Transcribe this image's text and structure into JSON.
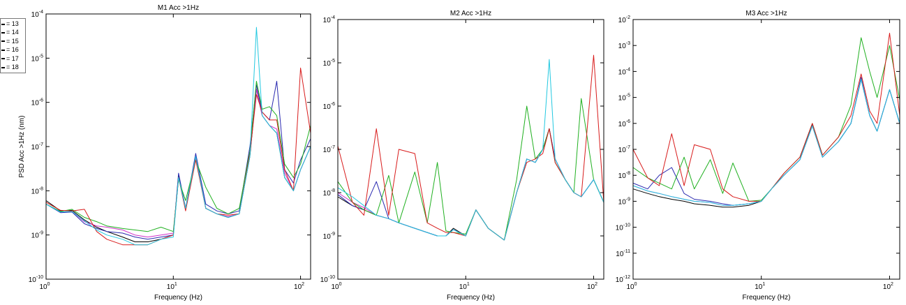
{
  "legend": {
    "entries": [
      "= 13",
      "= 14",
      "= 15",
      "= 16",
      "= 17",
      "= 18"
    ],
    "colors": [
      "#000000",
      "#d81b1b",
      "#20b020",
      "#2a2ab0",
      "#d030c8",
      "#22c8e0"
    ]
  },
  "chart_data": [
    {
      "type": "line",
      "title": "M1 Acc >1Hz",
      "xlabel": "Frequency (Hz)",
      "ylabel": "PSD Acc >1Hz (nm)",
      "xscale": "log",
      "yscale": "log",
      "xlim": [
        1,
        120
      ],
      "ylim": [
        1e-10,
        0.0001
      ],
      "xticks": [
        {
          "value": 1,
          "base": "10",
          "exp": "0"
        },
        {
          "value": 10,
          "base": "10",
          "exp": "1"
        },
        {
          "value": 100,
          "base": "10",
          "exp": "2"
        }
      ],
      "yticks": [
        {
          "value": 1e-10,
          "base": "10",
          "exp": "-10"
        },
        {
          "value": 1e-09,
          "base": "10",
          "exp": "-9"
        },
        {
          "value": 1e-08,
          "base": "10",
          "exp": "-8"
        },
        {
          "value": 1e-07,
          "base": "10",
          "exp": "-7"
        },
        {
          "value": 1e-06,
          "base": "10",
          "exp": "-6"
        },
        {
          "value": 1e-05,
          "base": "10",
          "exp": "-5"
        },
        {
          "value": 0.0001,
          "base": "10",
          "exp": "-4"
        }
      ],
      "grid": false,
      "x": [
        1,
        1.3,
        1.6,
        2,
        2.5,
        3,
        4,
        5,
        6.3,
        8,
        10,
        11,
        12.5,
        15,
        18,
        22,
        27,
        33,
        40,
        45,
        50,
        57,
        65,
        75,
        88,
        100,
        120
      ],
      "series": [
        {
          "name": "13",
          "values": [
            6e-09,
            3.5e-09,
            3.6e-09,
            2.2e-09,
            1.5e-09,
            1.2e-09,
            9e-10,
            7e-10,
            7e-10,
            8e-10,
            1e-09,
            2.2e-08,
            4e-09,
            6e-08,
            4e-09,
            3e-09,
            2.5e-09,
            3e-09,
            6e-08,
            2e-06,
            5e-07,
            3e-07,
            2e-07,
            2e-08,
            1e-08,
            3e-08,
            1e-07
          ]
        },
        {
          "name": "14",
          "values": [
            5.5e-09,
            3.6e-09,
            3.5e-09,
            3.8e-09,
            1.2e-09,
            8e-10,
            6e-10,
            6e-10,
            6e-10,
            8e-10,
            1e-09,
            2e-08,
            3.5e-09,
            5e-08,
            4e-09,
            3e-09,
            2.8e-09,
            3e-09,
            7e-08,
            1.5e-06,
            6e-07,
            4e-07,
            4e-07,
            3e-08,
            1e-08,
            6e-06,
            2e-07
          ]
        },
        {
          "name": "15",
          "values": [
            5e-09,
            3.4e-09,
            3.8e-09,
            2.5e-09,
            2e-09,
            1.6e-09,
            1.4e-09,
            1.3e-09,
            1.2e-09,
            1.5e-09,
            1.2e-09,
            1.8e-08,
            6e-09,
            5e-08,
            1.2e-08,
            4e-09,
            3e-09,
            4e-09,
            8e-08,
            3e-06,
            7e-07,
            8e-07,
            5e-07,
            4e-08,
            2e-08,
            4e-08,
            3e-07
          ]
        },
        {
          "name": "16",
          "values": [
            5e-09,
            3.2e-09,
            3.3e-09,
            1.8e-09,
            1.4e-09,
            1.2e-09,
            1.1e-09,
            9e-10,
            8e-10,
            9e-10,
            1e-09,
            2.5e-08,
            4e-09,
            7e-08,
            5e-09,
            3.5e-09,
            3e-09,
            3.5e-09,
            1e-07,
            2.5e-06,
            6e-07,
            4e-07,
            3e-06,
            3e-08,
            1.5e-08,
            5e-08,
            1.5e-07
          ]
        },
        {
          "name": "17",
          "values": [
            5e-09,
            3.3e-09,
            3.4e-09,
            2e-09,
            1.6e-09,
            1.5e-09,
            1.3e-09,
            1e-09,
            9e-10,
            1e-09,
            1.1e-09,
            2e-08,
            4e-09,
            6e-08,
            4e-09,
            3e-09,
            2.6e-09,
            3e-09,
            7e-08,
            2e-06,
            5e-07,
            3e-07,
            2.5e-07,
            2.5e-08,
            1e-08,
            3e-08,
            1e-07
          ]
        },
        {
          "name": "18",
          "values": [
            5e-09,
            3.3e-09,
            3.4e-09,
            2.1e-09,
            1.3e-09,
            1e-09,
            8e-10,
            6e-10,
            6e-10,
            8e-10,
            9e-10,
            2e-08,
            4e-09,
            6e-08,
            4e-09,
            3e-09,
            2.5e-09,
            3e-09,
            6e-08,
            5e-05,
            5e-07,
            3e-07,
            2e-07,
            2e-08,
            1e-08,
            3e-08,
            1e-07
          ]
        }
      ]
    },
    {
      "type": "line",
      "title": "M2 Acc >1Hz",
      "xlabel": "Frequency (Hz)",
      "ylabel": "",
      "xscale": "log",
      "yscale": "log",
      "xlim": [
        1,
        120
      ],
      "ylim": [
        1e-10,
        0.0001
      ],
      "xticks": [
        {
          "value": 1,
          "base": "10",
          "exp": "0"
        },
        {
          "value": 10,
          "base": "10",
          "exp": "1"
        },
        {
          "value": 100,
          "base": "10",
          "exp": "2"
        }
      ],
      "yticks": [
        {
          "value": 1e-10,
          "base": "10",
          "exp": "-10"
        },
        {
          "value": 1e-09,
          "base": "10",
          "exp": "-9"
        },
        {
          "value": 1e-08,
          "base": "10",
          "exp": "-8"
        },
        {
          "value": 1e-07,
          "base": "10",
          "exp": "-7"
        },
        {
          "value": 1e-06,
          "base": "10",
          "exp": "-6"
        },
        {
          "value": 1e-05,
          "base": "10",
          "exp": "-5"
        },
        {
          "value": 0.0001,
          "base": "10",
          "exp": "-4"
        }
      ],
      "grid": false,
      "x": [
        1,
        1.3,
        1.6,
        2,
        2.5,
        3,
        4,
        5,
        6,
        7,
        8,
        10,
        12,
        15,
        20,
        25,
        30,
        35,
        40,
        45,
        50,
        60,
        70,
        80,
        100,
        120
      ],
      "series": [
        {
          "name": "13",
          "values": [
            8e-09,
            5e-09,
            4e-09,
            3e-09,
            2.5e-09,
            2e-09,
            1.5e-09,
            1.2e-09,
            1e-09,
            1e-09,
            1.5e-09,
            1e-09,
            4e-09,
            1.5e-09,
            8e-10,
            1e-08,
            6e-08,
            5e-08,
            1e-07,
            3e-07,
            6e-08,
            2e-08,
            1e-08,
            8e-09,
            2e-08,
            6e-09
          ]
        },
        {
          "name": "14",
          "values": [
            1.2e-07,
            6e-09,
            3e-09,
            3e-07,
            3e-09,
            1e-07,
            8e-08,
            2e-09,
            1.5e-09,
            1.2e-09,
            1.2e-09,
            1e-09,
            4e-09,
            1.5e-09,
            8e-10,
            1e-08,
            5e-08,
            6e-08,
            8e-08,
            3e-07,
            5e-08,
            2e-08,
            1e-08,
            8e-09,
            1.5e-05,
            6e-09
          ]
        },
        {
          "name": "15",
          "values": [
            1.8e-08,
            6e-09,
            4e-09,
            3e-09,
            2.5e-08,
            2e-09,
            3e-08,
            2e-09,
            5e-08,
            1.3e-09,
            1.2e-09,
            1.1e-09,
            4e-09,
            1.5e-09,
            8e-10,
            2e-08,
            1e-06,
            6e-08,
            1e-07,
            3e-07,
            5e-08,
            2e-08,
            1e-08,
            1.5e-06,
            2e-08,
            6e-09
          ]
        },
        {
          "name": "16",
          "values": [
            9e-09,
            5e-09,
            4e-09,
            1.8e-08,
            2.5e-09,
            2e-09,
            1.5e-09,
            1.2e-09,
            1e-09,
            1e-09,
            1.4e-09,
            1e-09,
            4e-09,
            1.5e-09,
            8e-10,
            1e-08,
            6e-08,
            5e-08,
            1e-07,
            3e-07,
            6e-08,
            2e-08,
            1e-08,
            8e-09,
            2e-08,
            6e-09
          ]
        },
        {
          "name": "17",
          "values": [
            1e-08,
            6e-09,
            4.5e-09,
            3e-09,
            2.5e-09,
            2e-09,
            1.5e-09,
            1.2e-09,
            1e-09,
            1e-09,
            1.4e-09,
            1e-09,
            4e-09,
            1.5e-09,
            8e-10,
            1e-08,
            6e-08,
            5e-08,
            1e-07,
            3e-07,
            6e-08,
            2e-08,
            1e-08,
            8e-09,
            2e-08,
            6e-09
          ]
        },
        {
          "name": "18",
          "values": [
            1.3e-08,
            8e-09,
            5e-09,
            3e-09,
            2.5e-09,
            2e-09,
            1.5e-09,
            1.2e-09,
            1e-09,
            1e-09,
            1.4e-09,
            1e-09,
            4e-09,
            1.5e-09,
            8e-10,
            1e-08,
            6e-08,
            5e-08,
            1e-07,
            1.2e-05,
            6e-08,
            2e-08,
            1e-08,
            8e-09,
            2e-08,
            6e-09
          ]
        }
      ]
    },
    {
      "type": "line",
      "title": "M3 Acc >1Hz",
      "xlabel": "Frequency (Hz)",
      "ylabel": "",
      "xscale": "log",
      "yscale": "log",
      "xlim": [
        1,
        120
      ],
      "ylim": [
        1e-12,
        0.01
      ],
      "xticks": [
        {
          "value": 1,
          "base": "10",
          "exp": "0"
        },
        {
          "value": 10,
          "base": "10",
          "exp": "1"
        },
        {
          "value": 100,
          "base": "10",
          "exp": "2"
        }
      ],
      "yticks": [
        {
          "value": 1e-12,
          "base": "10",
          "exp": "-12"
        },
        {
          "value": 1e-11,
          "base": "10",
          "exp": "-11"
        },
        {
          "value": 1e-10,
          "base": "10",
          "exp": "-10"
        },
        {
          "value": 1e-09,
          "base": "10",
          "exp": "-9"
        },
        {
          "value": 1e-08,
          "base": "10",
          "exp": "-8"
        },
        {
          "value": 1e-07,
          "base": "10",
          "exp": "-7"
        },
        {
          "value": 1e-06,
          "base": "10",
          "exp": "-6"
        },
        {
          "value": 1e-05,
          "base": "10",
          "exp": "-5"
        },
        {
          "value": 0.0001,
          "base": "10",
          "exp": "-4"
        },
        {
          "value": 0.001,
          "base": "10",
          "exp": "-3"
        },
        {
          "value": 0.01,
          "base": "10",
          "exp": "-2"
        }
      ],
      "grid": false,
      "x": [
        1,
        1.3,
        1.6,
        2,
        2.5,
        3,
        4,
        5,
        6,
        8,
        10,
        12,
        15,
        20,
        25,
        30,
        40,
        50,
        60,
        70,
        80,
        100,
        120
      ],
      "series": [
        {
          "name": "13",
          "values": [
            3e-09,
            2e-09,
            1.5e-09,
            1.2e-09,
            1e-09,
            8e-10,
            7e-10,
            6e-10,
            6e-10,
            7e-10,
            1e-09,
            3e-09,
            1e-08,
            4e-08,
            8e-07,
            5e-08,
            2e-07,
            1e-06,
            5e-05,
            2e-06,
            5e-07,
            2e-05,
            1e-06
          ]
        },
        {
          "name": "14",
          "values": [
            1e-07,
            8e-09,
            4e-09,
            4e-07,
            4e-09,
            1.5e-07,
            1e-07,
            3e-09,
            1.5e-09,
            1e-09,
            1e-09,
            3e-09,
            1.2e-08,
            5e-08,
            1e-06,
            6e-08,
            3e-07,
            2e-06,
            8e-05,
            3e-06,
            1e-06,
            0.003,
            2e-06
          ]
        },
        {
          "name": "15",
          "values": [
            2e-08,
            8e-09,
            5e-09,
            3e-09,
            5e-08,
            3e-09,
            4e-08,
            2e-09,
            3e-08,
            1e-09,
            1.1e-09,
            3e-09,
            1.2e-08,
            5e-08,
            1e-06,
            6e-08,
            3e-07,
            5e-06,
            0.002,
            0.0001,
            1e-05,
            0.001,
            8e-06
          ]
        },
        {
          "name": "16",
          "values": [
            5e-09,
            3e-09,
            1e-08,
            2e-08,
            2e-09,
            1.2e-09,
            1e-09,
            8e-10,
            7e-10,
            8e-10,
            1e-09,
            3e-09,
            1e-08,
            4e-08,
            9e-07,
            5e-08,
            2e-07,
            1e-06,
            6e-05,
            2e-06,
            5e-07,
            2e-05,
            1e-06
          ]
        },
        {
          "name": "17",
          "values": [
            4e-09,
            2.5e-09,
            2e-09,
            1.5e-09,
            1.2e-09,
            1e-09,
            9e-10,
            7e-10,
            7e-10,
            8e-10,
            1e-09,
            3e-09,
            1e-08,
            4e-08,
            8e-07,
            5e-08,
            2e-07,
            1e-06,
            5e-05,
            2e-06,
            5e-07,
            2e-05,
            1e-06
          ]
        },
        {
          "name": "18",
          "values": [
            4e-09,
            2.5e-09,
            2e-09,
            1.5e-09,
            1.2e-09,
            1e-09,
            9e-10,
            7e-10,
            7e-10,
            8e-10,
            1e-09,
            3e-09,
            1e-08,
            4e-08,
            8e-07,
            5e-08,
            2e-07,
            1e-06,
            5e-05,
            2e-06,
            5e-07,
            2e-05,
            1e-06
          ]
        }
      ]
    }
  ]
}
